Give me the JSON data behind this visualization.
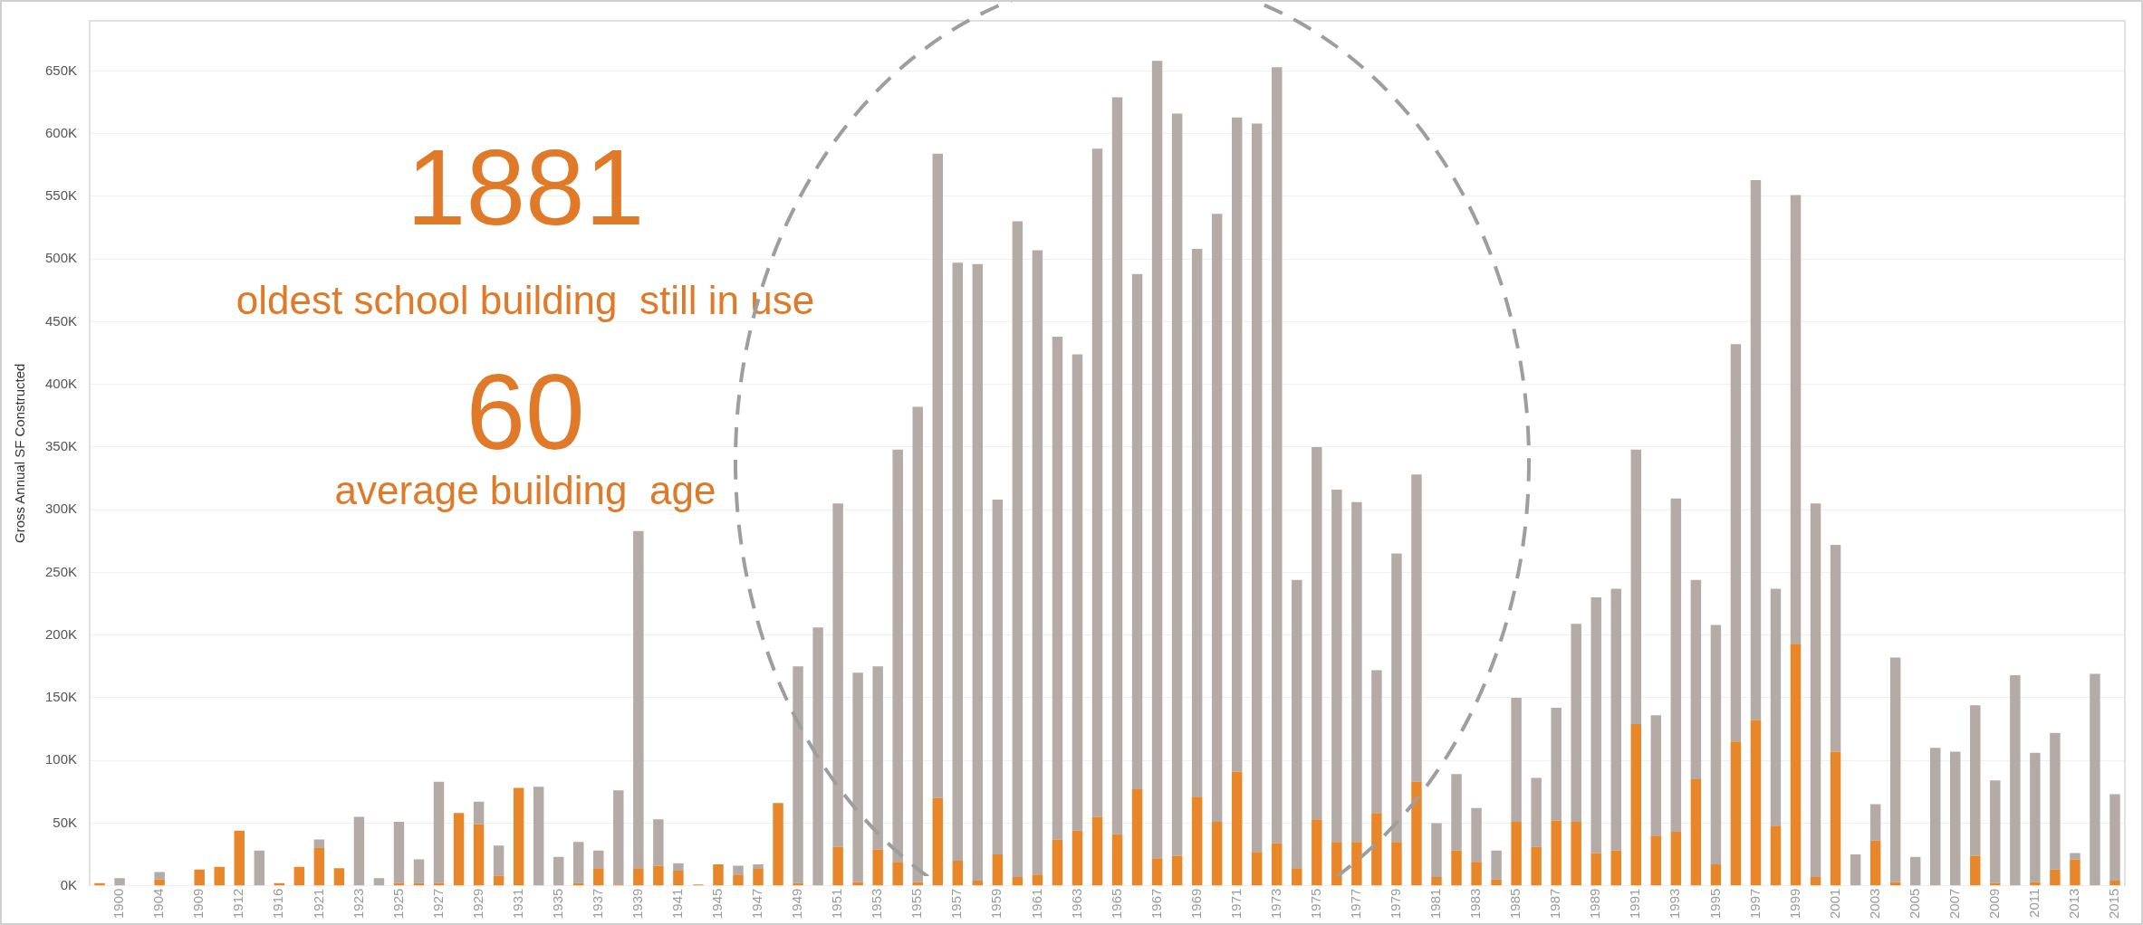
{
  "chart_data": {
    "type": "bar",
    "ylabel": "Gross Annual SF Constructed",
    "annotations": [
      "1881",
      "oldest school building  still in use",
      "60",
      "average building  age"
    ],
    "categories": [
      null,
      "1900",
      null,
      "1904",
      null,
      "1909",
      null,
      "1912",
      null,
      "1916",
      null,
      "1921",
      null,
      "1923",
      null,
      "1925",
      null,
      "1927",
      null,
      "1929",
      null,
      "1931",
      null,
      "1935",
      null,
      "1937",
      null,
      "1939",
      null,
      "1941",
      null,
      "1945",
      null,
      "1947",
      null,
      "1949",
      null,
      "1951",
      null,
      "1953",
      null,
      "1955",
      null,
      "1957",
      null,
      "1959",
      null,
      "1961",
      null,
      "1963",
      null,
      "1965",
      null,
      "1967",
      null,
      "1969",
      null,
      "1971",
      null,
      "1973",
      null,
      "1975",
      null,
      "1977",
      null,
      "1979",
      null,
      "1981",
      null,
      "1983",
      null,
      "1985",
      null,
      "1987",
      null,
      "1989",
      null,
      "1991",
      null,
      "1993",
      null,
      "1995",
      null,
      "1997",
      null,
      "1999",
      null,
      "2001",
      null,
      "2003",
      null,
      "2005",
      null,
      "2007",
      null,
      "2009",
      null,
      "2011",
      null,
      "2013",
      null,
      "2015"
    ],
    "stacked": true,
    "series": [
      {
        "color": "#e8872a",
        "values": [
          2000,
          0,
          0,
          5000,
          0,
          13000,
          15000,
          44000,
          0,
          2000,
          15000,
          30000,
          14000,
          0,
          0,
          2000,
          2000,
          2000,
          58000,
          49000,
          8000,
          78000,
          0,
          0,
          2000,
          14000,
          1000,
          14000,
          16000,
          12000,
          1000,
          17000,
          9000,
          14000,
          66000,
          2000,
          0,
          31000,
          3000,
          29000,
          19000,
          3000,
          70000,
          20000,
          4000,
          25000,
          7000,
          9000,
          37000,
          44000,
          55000,
          41000,
          77000,
          22000,
          24000,
          71000,
          51000,
          91000,
          27000,
          34000,
          14000,
          53000,
          35000,
          35000,
          58000,
          35000,
          83000,
          7000,
          28000,
          19000,
          5000,
          51000,
          31000,
          52000,
          51000,
          26000,
          28000,
          129000,
          40000,
          43000,
          85000,
          17000,
          115000,
          132000,
          48000,
          193000,
          7000,
          107000,
          0,
          36000,
          3000,
          0,
          0,
          0,
          24000,
          2000,
          0,
          3000,
          13000,
          21000,
          0,
          4000
        ]
      },
      {
        "color": "#b4aaa6",
        "values": [
          0,
          6000,
          null,
          6000,
          null,
          0,
          0,
          0,
          28000,
          0,
          0,
          7000,
          0,
          55000,
          6000,
          49000,
          19000,
          81000,
          0,
          18000,
          24000,
          0,
          79000,
          23000,
          33000,
          14000,
          75000,
          269000,
          37000,
          6000,
          0,
          0,
          7000,
          3000,
          0,
          173000,
          206000,
          274000,
          167000,
          146000,
          329000,
          379000,
          514000,
          477000,
          492000,
          283000,
          523000,
          498000,
          401000,
          380000,
          533000,
          588000,
          411000,
          636000,
          592000,
          437000,
          485000,
          522000,
          581000,
          619000,
          230000,
          297000,
          281000,
          271000,
          114000,
          230000,
          245000,
          43000,
          61000,
          43000,
          23000,
          99000,
          55000,
          90000,
          158000,
          204000,
          209000,
          219000,
          96000,
          266000,
          159000,
          191000,
          317000,
          431000,
          189000,
          358000,
          298000,
          165000,
          25000,
          29000,
          179000,
          23000,
          110000,
          107000,
          120000,
          82000,
          168000,
          103000,
          109000,
          5000,
          169000,
          69000
        ]
      }
    ],
    "ylim": [
      0,
      690000
    ],
    "yticks": [
      {
        "value": 0,
        "label": "0K"
      },
      {
        "value": 50000,
        "label": "50K"
      },
      {
        "value": 100000,
        "label": "100K"
      },
      {
        "value": 150000,
        "label": "150K"
      },
      {
        "value": 200000,
        "label": "200K"
      },
      {
        "value": 250000,
        "label": "250K"
      },
      {
        "value": 300000,
        "label": "300K"
      },
      {
        "value": 350000,
        "label": "350K"
      },
      {
        "value": 400000,
        "label": "400K"
      },
      {
        "value": 450000,
        "label": "450K"
      },
      {
        "value": 500000,
        "label": "500K"
      },
      {
        "value": 550000,
        "label": "550K"
      },
      {
        "value": 600000,
        "label": "600K"
      },
      {
        "value": 650000,
        "label": "650K"
      }
    ],
    "grid": "y"
  }
}
